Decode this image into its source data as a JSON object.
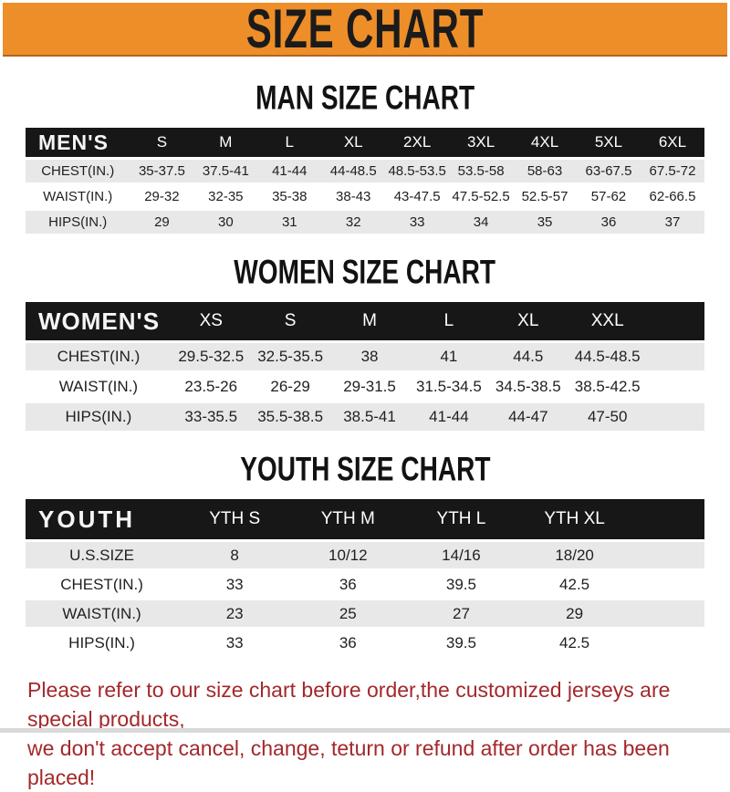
{
  "banner": {
    "title": "SIZE CHART",
    "bg_color": "#EE8E29",
    "text_color": "#1b1b1b"
  },
  "sections": [
    {
      "title": "MAN SIZE CHART",
      "header_label": "MEN'S",
      "columns": [
        "S",
        "M",
        "L",
        "XL",
        "2XL",
        "3XL",
        "4XL",
        "5XL",
        "6XL"
      ],
      "rows": [
        {
          "label": "CHEST(IN.)",
          "values": [
            "35-37.5",
            "37.5-41",
            "41-44",
            "44-48.5",
            "48.5-53.5",
            "53.5-58",
            "58-63",
            "63-67.5",
            "67.5-72"
          ]
        },
        {
          "label": "WAIST(IN.)",
          "values": [
            "29-32",
            "32-35",
            "35-38",
            "38-43",
            "43-47.5",
            "47.5-52.5",
            "52.5-57",
            "57-62",
            "62-66.5"
          ]
        },
        {
          "label": "HIPS(IN.)",
          "values": [
            "29",
            "30",
            "31",
            "32",
            "33",
            "34",
            "35",
            "36",
            "37"
          ]
        }
      ]
    },
    {
      "title": "WOMEN SIZE CHART",
      "header_label": "WOMEN'S",
      "columns": [
        "XS",
        "S",
        "M",
        "L",
        "XL",
        "XXL"
      ],
      "rows": [
        {
          "label": "CHEST(IN.)",
          "values": [
            "29.5-32.5",
            "32.5-35.5",
            "38",
            "41",
            "44.5",
            "44.5-48.5"
          ]
        },
        {
          "label": "WAIST(IN.)",
          "values": [
            "23.5-26",
            "26-29",
            "29-31.5",
            "31.5-34.5",
            "34.5-38.5",
            "38.5-42.5"
          ]
        },
        {
          "label": "HIPS(IN.)",
          "values": [
            "33-35.5",
            "35.5-38.5",
            "38.5-41",
            "41-44",
            "44-47",
            "47-50"
          ]
        }
      ]
    },
    {
      "title": "YOUTH SIZE CHART",
      "header_label": "YOUTH",
      "columns": [
        "YTH S",
        "YTH M",
        "YTH L",
        "YTH XL"
      ],
      "rows": [
        {
          "label": "U.S.SIZE",
          "values": [
            "8",
            "10/12",
            "14/16",
            "18/20"
          ]
        },
        {
          "label": "CHEST(IN.)",
          "values": [
            "33",
            "36",
            "39.5",
            "42.5"
          ]
        },
        {
          "label": "WAIST(IN.)",
          "values": [
            "23",
            "25",
            "27",
            "29"
          ]
        },
        {
          "label": "HIPS(IN.)",
          "values": [
            "33",
            "36",
            "39.5",
            "42.5"
          ]
        }
      ]
    }
  ],
  "footer": {
    "line1": "Please refer to our size chart before order,the customized jerseys are special products,",
    "line2": "we don't accept cancel, change, teturn or refund after order has been placed!",
    "text_color": "#A3282B"
  },
  "colors": {
    "header_row_bg": "#171717",
    "stripe_row_bg": "#e8e8e8"
  }
}
